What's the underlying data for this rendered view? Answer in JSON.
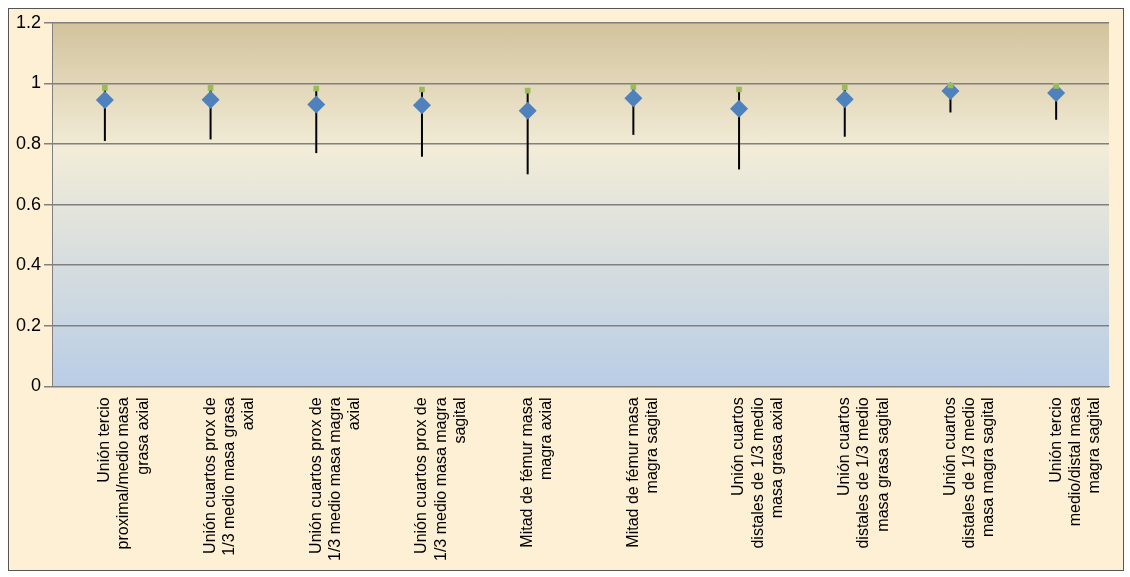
{
  "chart_data": {
    "type": "scatter",
    "categories": [
      "Unión tercio proximal/medio masa grasa axial",
      "Unión cuartos prox de 1/3 medio masa grasa axial",
      "Unión cuartos prox de 1/3 medio masa magra axial",
      "Unión cuartos prox de 1/3 medio masa magra sagital",
      "Mitad de fémur masa magra axial",
      "Mitad de fémur masa magra sagital",
      "Unión cuartos distales de 1/3 medio masa grasa axial",
      "Unión cuartos distales de 1/3 medio masa grasa sagital",
      "Unión cuartos distales de 1/3 medio masa magra sagital",
      "Unión tercio medio/distal masa magra sagital"
    ],
    "series": [
      {
        "marker": "diamond",
        "color": "#4f81bd",
        "values": [
          0.945,
          0.946,
          0.93,
          0.928,
          0.91,
          0.951,
          0.916,
          0.948,
          0.975,
          0.968
        ],
        "errors": [
          [
            0.81,
            0.985
          ],
          [
            0.815,
            0.985
          ],
          [
            0.77,
            0.983
          ],
          [
            0.758,
            0.98
          ],
          [
            0.7,
            0.976
          ],
          [
            0.83,
            0.988
          ],
          [
            0.716,
            0.98
          ],
          [
            0.824,
            0.987
          ],
          [
            0.904,
            0.993
          ],
          [
            0.88,
            0.992
          ]
        ]
      },
      {
        "marker": "square",
        "color": "#9bbb59",
        "values": [
          0.985,
          0.985,
          0.983,
          0.98,
          0.976,
          0.988,
          0.98,
          0.987,
          0.993,
          0.992
        ]
      }
    ],
    "ylim": [
      0,
      1.2
    ],
    "yticks": [
      0,
      0.2,
      0.4,
      0.6,
      0.8,
      1,
      1.2
    ],
    "grid": "y",
    "legend": false
  }
}
